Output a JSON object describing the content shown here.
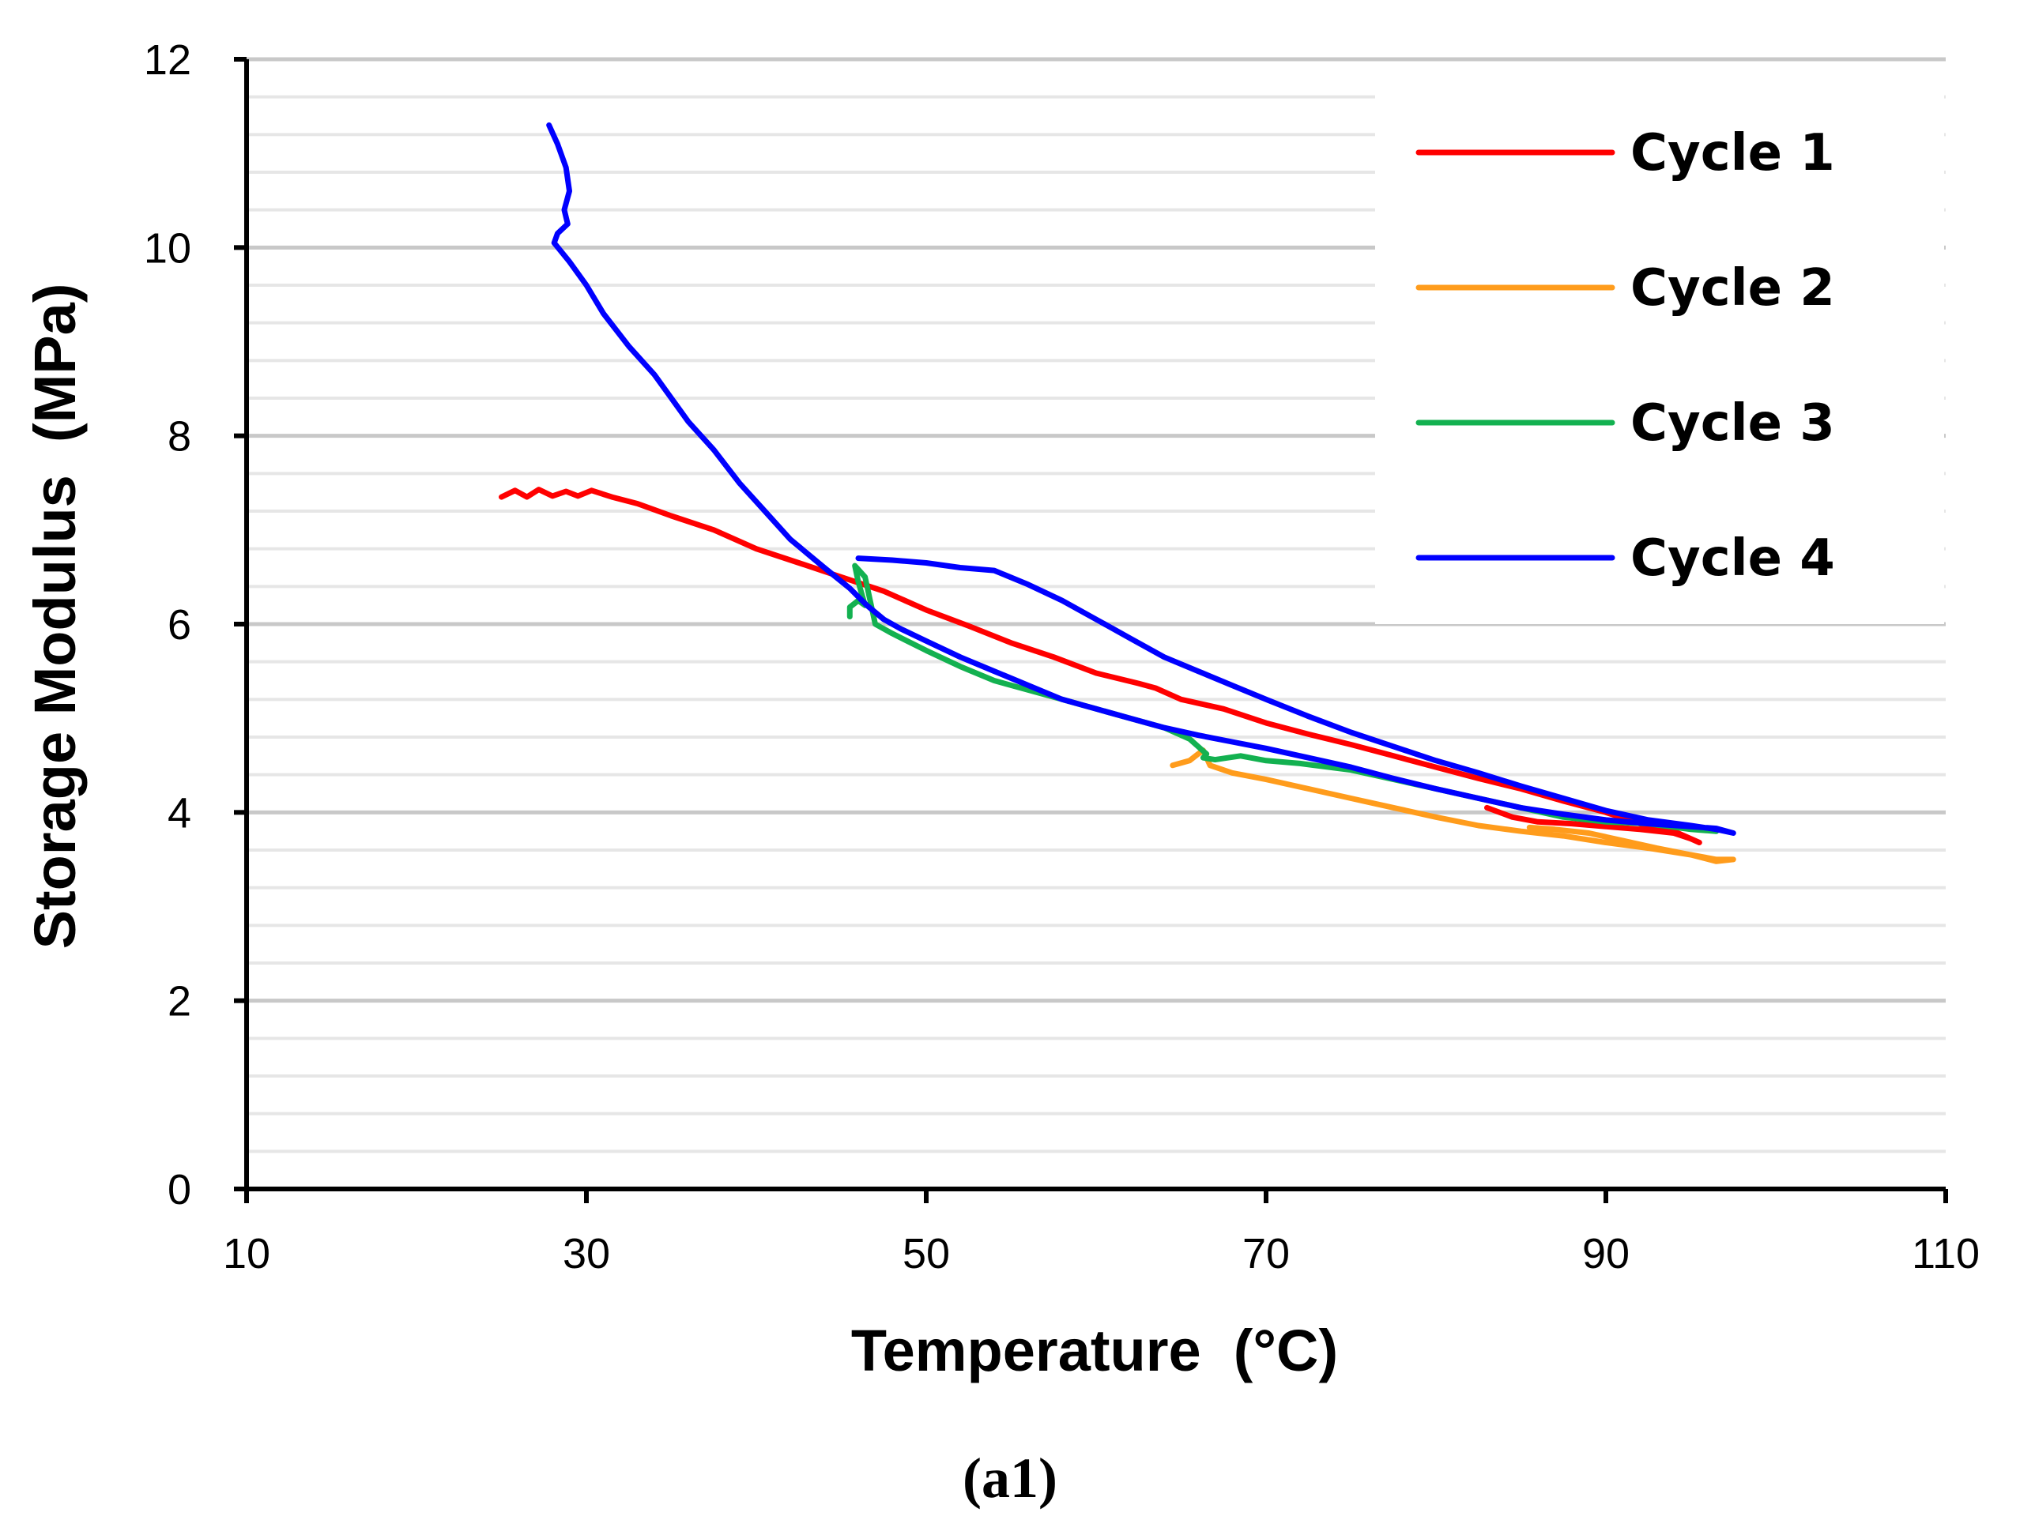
{
  "panel_label": "(a1)",
  "chart_data": {
    "type": "line",
    "title": "",
    "xlabel": "Temperature  (°C)",
    "ylabel": "Storage Modulus  (MPa)",
    "xlim": [
      10,
      110
    ],
    "ylim": [
      0,
      12
    ],
    "xticks": [
      10,
      30,
      50,
      70,
      90,
      110
    ],
    "yticks": [
      0,
      2,
      4,
      6,
      8,
      10,
      12
    ],
    "minor_grid_step_y": 0.4,
    "grid": true,
    "legend_position": "top-right",
    "series": [
      {
        "name": "Cycle 1",
        "color": "#ff0000",
        "x": [
          25.0,
          25.8,
          26.5,
          27.2,
          28.0,
          28.8,
          29.5,
          30.3,
          31.5,
          33.0,
          35.0,
          37.5,
          40.0,
          42.5,
          45.0,
          47.5,
          50.0,
          52.5,
          55.0,
          57.5,
          60.0,
          62.5,
          63.5,
          65.0,
          67.5,
          70.0,
          72.5,
          75.0,
          77.5,
          80.0,
          82.5,
          85.0,
          87.5,
          90.0,
          92.5,
          94.0,
          95.5,
          95.0,
          94.0,
          92.0,
          90.0,
          88.0,
          86.0,
          84.5,
          83.0
        ],
        "y": [
          7.35,
          7.42,
          7.35,
          7.43,
          7.36,
          7.41,
          7.36,
          7.42,
          7.35,
          7.28,
          7.15,
          7.0,
          6.8,
          6.65,
          6.5,
          6.35,
          6.15,
          5.98,
          5.8,
          5.65,
          5.48,
          5.37,
          5.32,
          5.2,
          5.1,
          4.95,
          4.83,
          4.72,
          4.6,
          4.48,
          4.36,
          4.25,
          4.12,
          4.0,
          3.85,
          3.8,
          3.68,
          3.72,
          3.78,
          3.82,
          3.85,
          3.88,
          3.9,
          3.95,
          4.05
        ]
      },
      {
        "name": "Cycle 2",
        "color": "#ff9c1c",
        "x": [
          64.5,
          65.5,
          66.0,
          66.3,
          66.7,
          68.0,
          70.0,
          72.5,
          75.0,
          77.5,
          80.0,
          82.5,
          85.0,
          87.5,
          90.0,
          92.5,
          95.0,
          96.5,
          97.5,
          96.5,
          95.0,
          93.0,
          91.0,
          89.0,
          87.0,
          85.5
        ],
        "y": [
          4.5,
          4.55,
          4.62,
          4.66,
          4.5,
          4.42,
          4.35,
          4.25,
          4.15,
          4.05,
          3.95,
          3.86,
          3.8,
          3.75,
          3.68,
          3.62,
          3.55,
          3.5,
          3.5,
          3.48,
          3.55,
          3.62,
          3.7,
          3.78,
          3.82,
          3.84
        ]
      },
      {
        "name": "Cycle 3",
        "color": "#13b150",
        "x": [
          45.5,
          45.5,
          46.0,
          46.4,
          46.0,
          45.8,
          46.4,
          47.0,
          48.0,
          50.0,
          52.0,
          54.0,
          56.0,
          58.0,
          60.0,
          62.0,
          64.0,
          65.5,
          66.5,
          66.3,
          67.0,
          68.5,
          70.0,
          72.0,
          75.0,
          77.5,
          80.0,
          82.5,
          85.0,
          87.5,
          90.0,
          92.5,
          95.0,
          96.5
        ],
        "y": [
          6.08,
          6.18,
          6.25,
          6.2,
          6.45,
          6.62,
          6.5,
          6.0,
          5.9,
          5.72,
          5.55,
          5.4,
          5.3,
          5.2,
          5.1,
          5.0,
          4.9,
          4.78,
          4.62,
          4.58,
          4.56,
          4.6,
          4.55,
          4.52,
          4.45,
          4.35,
          4.25,
          4.15,
          4.05,
          3.95,
          3.9,
          3.88,
          3.82,
          3.8
        ]
      },
      {
        "name": "Cycle 4",
        "color": "#0000ff",
        "x": [
          27.8,
          28.3,
          28.8,
          29.0,
          28.7,
          28.9,
          28.3,
          28.1,
          29.0,
          30.0,
          31.0,
          32.5,
          34.0,
          35.0,
          36.0,
          37.5,
          39.0,
          40.5,
          42.0,
          44.0,
          45.5,
          46.5,
          47.5,
          48.5,
          50.0,
          52.0,
          54.0,
          56.0,
          58.0,
          60.0,
          62.0,
          64.0,
          66.0,
          68.0,
          70.0,
          72.5,
          75.0,
          77.5,
          80.0,
          82.5,
          85.0,
          87.5,
          90.0,
          92.5,
          95.0,
          96.5,
          97.5,
          96.5,
          95.0,
          92.5,
          90.0,
          87.5,
          85.0,
          82.5,
          80.0,
          77.5,
          75.0,
          72.5,
          70.0,
          68.0,
          66.0,
          64.0,
          62.0,
          60.0,
          58.0,
          56.0,
          54.0,
          52.0,
          50.0,
          48.0,
          46.0
        ],
        "y": [
          11.3,
          11.1,
          10.85,
          10.6,
          10.4,
          10.25,
          10.15,
          10.05,
          9.85,
          9.6,
          9.3,
          8.95,
          8.65,
          8.4,
          8.15,
          7.85,
          7.5,
          7.2,
          6.9,
          6.6,
          6.38,
          6.2,
          6.05,
          5.95,
          5.82,
          5.65,
          5.5,
          5.35,
          5.2,
          5.1,
          5.0,
          4.9,
          4.82,
          4.75,
          4.68,
          4.58,
          4.48,
          4.36,
          4.25,
          4.15,
          4.05,
          3.98,
          3.92,
          3.88,
          3.85,
          3.83,
          3.78,
          3.82,
          3.86,
          3.92,
          4.02,
          4.15,
          4.28,
          4.42,
          4.55,
          4.7,
          4.85,
          5.02,
          5.2,
          5.35,
          5.5,
          5.65,
          5.85,
          6.05,
          6.25,
          6.42,
          6.57,
          6.6,
          6.65,
          6.68,
          6.7
        ]
      }
    ]
  }
}
